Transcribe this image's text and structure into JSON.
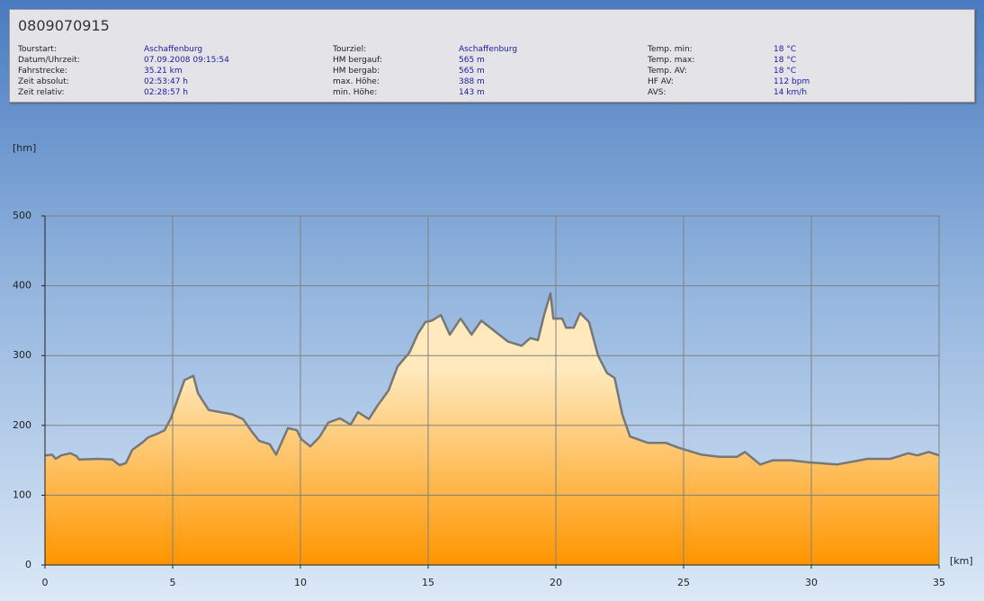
{
  "header": {
    "title": "0809070915",
    "columns": [
      [
        {
          "label": "Tourstart:",
          "value": "Aschaffenburg"
        },
        {
          "label": "Datum/Uhrzeit:",
          "value": "07.09.2008 09:15:54"
        },
        {
          "label": "Fahrstrecke:",
          "value": "35.21 km"
        },
        {
          "label": "Zeit absolut:",
          "value": "02:53:47 h"
        },
        {
          "label": "Zeit relativ:",
          "value": "02:28:57 h"
        }
      ],
      [
        {
          "label": "Tourziel:",
          "value": "Aschaffenburg"
        },
        {
          "label": "HM bergauf:",
          "value": "565 m"
        },
        {
          "label": "HM bergab:",
          "value": "565 m"
        },
        {
          "label": "max. Höhe:",
          "value": "388 m"
        },
        {
          "label": "min. Höhe:",
          "value": "143 m"
        }
      ],
      [
        {
          "label": "Temp. min:",
          "value": "18 °C"
        },
        {
          "label": "Temp. max:",
          "value": "18 °C"
        },
        {
          "label": "Temp. AV:",
          "value": "18 °C"
        },
        {
          "label": "HF AV:",
          "value": "112 bpm"
        },
        {
          "label": "AVS:",
          "value": "14 km/h"
        }
      ]
    ]
  },
  "chart_data": {
    "type": "area",
    "xlabel": "[km]",
    "ylabel": "[hm]",
    "x": [
      0,
      0.28,
      0.42,
      0.63,
      0.99,
      1.23,
      1.34,
      2.11,
      2.64,
      2.92,
      3.17,
      3.42,
      3.8,
      4.05,
      4.4,
      4.68,
      4.93,
      5.18,
      5.46,
      5.81,
      5.99,
      6.41,
      6.87,
      7.32,
      7.75,
      8.1,
      8.38,
      8.8,
      9.05,
      9.51,
      9.86,
      10.04,
      10.39,
      10.74,
      11.09,
      11.55,
      11.97,
      12.25,
      12.68,
      13.03,
      13.45,
      13.8,
      14.26,
      14.61,
      14.89,
      15.14,
      15.5,
      15.85,
      16.27,
      16.7,
      17.08,
      17.6,
      18.13,
      18.66,
      19.0,
      19.3,
      19.54,
      19.79,
      19.9,
      20.25,
      20.4,
      20.7,
      20.95,
      21.3,
      21.65,
      22.0,
      22.3,
      22.6,
      22.9,
      23.6,
      24.3,
      24.8,
      25.7,
      26.4,
      27.1,
      27.4,
      28.0,
      28.5,
      29.2,
      29.9,
      31.0,
      32.2,
      33.1,
      33.8,
      34.15,
      34.6,
      35.0
    ],
    "values": [
      157,
      158,
      152,
      157,
      160,
      156,
      151,
      152,
      151,
      143,
      146,
      165,
      175,
      183,
      188,
      193,
      210,
      236,
      265,
      271,
      246,
      222,
      219,
      216,
      209,
      191,
      178,
      173,
      158,
      196,
      193,
      180,
      170,
      183,
      204,
      210,
      201,
      219,
      209,
      229,
      250,
      284,
      304,
      332,
      348,
      350,
      358,
      330,
      353,
      330,
      350,
      335,
      320,
      314,
      325,
      322,
      358,
      389,
      353,
      353,
      340,
      340,
      361,
      348,
      300,
      275,
      268,
      216,
      184,
      175,
      175,
      168,
      158,
      155,
      155,
      162,
      144,
      150,
      150,
      147,
      144,
      152,
      152,
      160,
      157,
      162,
      157
    ],
    "line_color": "#777777",
    "fill_top": "#ffe9bd",
    "fill_bottom": "#ff9500",
    "xlim": [
      0,
      35
    ],
    "xticks": [
      0,
      5,
      10,
      15,
      20,
      25,
      30,
      35
    ],
    "ylim": [
      0,
      500
    ],
    "yticks": [
      0,
      100,
      200,
      300,
      400,
      500
    ],
    "grid": true
  }
}
